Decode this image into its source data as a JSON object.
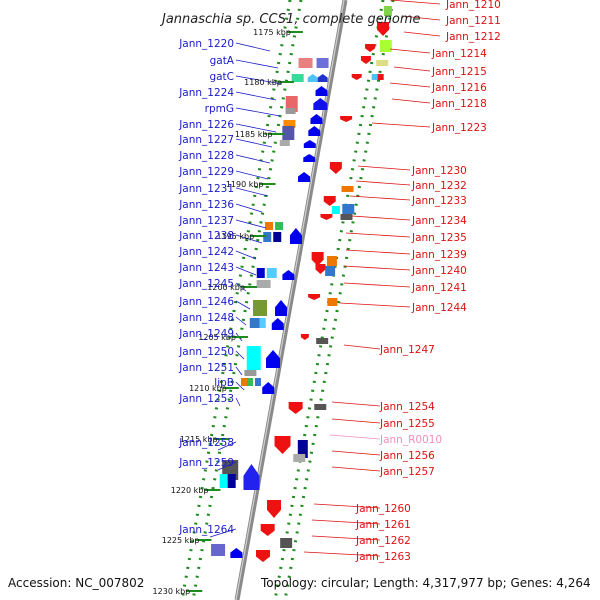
{
  "title": "Jannaschia sp. CCS1, complete genome",
  "footer": {
    "accession": "Accession: NC_007802",
    "topology": "Topology: circular; Length: 4,317,977 bp; Genes: 4,264"
  },
  "colors": {
    "left_label": "#1a1acc",
    "right_label": "#dd1111",
    "rna_label": "#f08fbd",
    "dots": "#1e8b1e",
    "backbone": "#888888"
  },
  "kbp_ticks": [
    "1175 kbp",
    "1180 kbp",
    "1185 kbp",
    "1190 kbp",
    "1195 kbp",
    "1200 kbp",
    "1205 kbp",
    "1210 kbp",
    "1215 kbp",
    "1220 kbp",
    "1225 kbp",
    "1230 kbp"
  ],
  "left_genes": [
    "Jann_1220",
    "gatA",
    "gatC",
    "Jann_1224",
    "rpmG",
    "Jann_1226",
    "Jann_1227",
    "Jann_1228",
    "Jann_1229",
    "Jann_1231",
    "Jann_1236",
    "Jann_1237",
    "Jann_1238",
    "Jann_1242",
    "Jann_1243",
    "Jann_1245",
    "Jann_1246",
    "Jann_1248",
    "Jann_1249",
    "Jann_1250",
    "Jann_1251",
    "lipB",
    "Jann_1253",
    "Jann_1258",
    "Jann_1259",
    "Jann_1264"
  ],
  "right_genes": [
    "Jann_1210",
    "Jann_1211",
    "Jann_1212",
    "Jann_1214",
    "Jann_1215",
    "Jann_1216",
    "Jann_1218",
    "Jann_1223",
    "Jann_1230",
    "Jann_1232",
    "Jann_1233",
    "Jann_1234",
    "Jann_1235",
    "Jann_1239",
    "Jann_1240",
    "Jann_1241",
    "Jann_1244",
    "Jann_1247",
    "Jann_1254",
    "Jann_1255",
    "Jann_R0010",
    "Jann_1256",
    "Jann_1257",
    "Jann_1260",
    "Jann_1261",
    "Jann_1262",
    "Jann_1263"
  ],
  "rna_genes": [
    "Jann_R0010"
  ]
}
